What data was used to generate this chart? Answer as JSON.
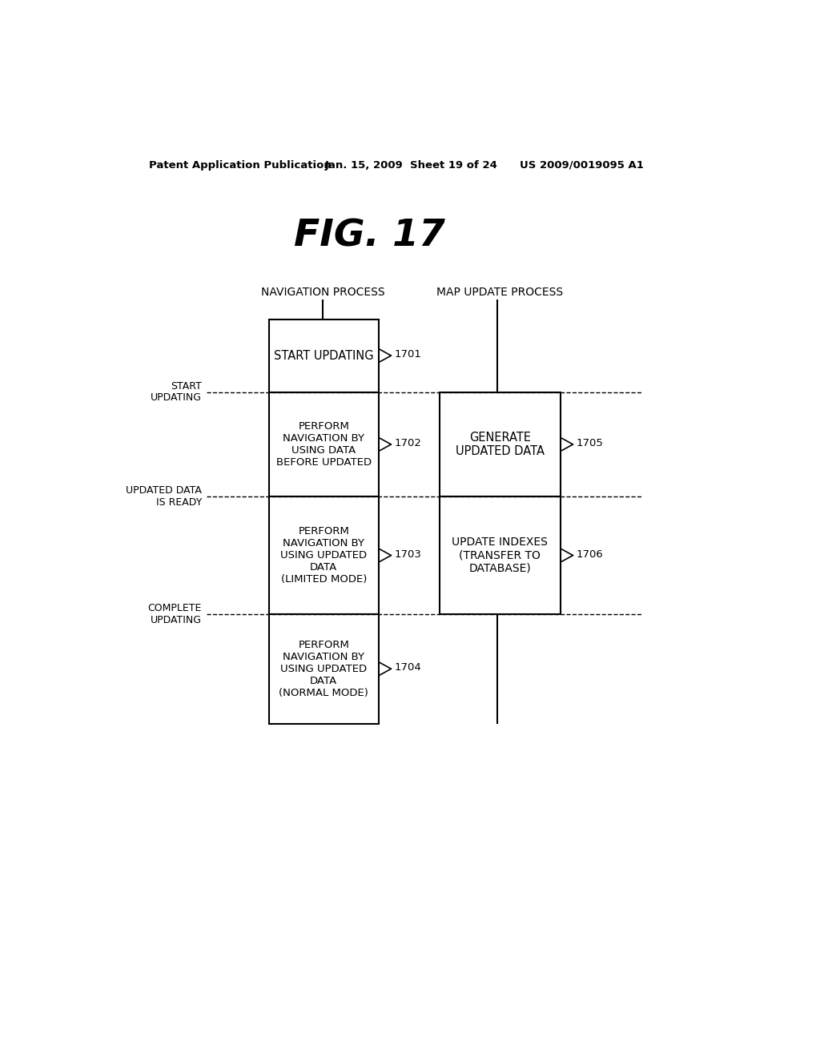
{
  "title": "FIG. 17",
  "header_left": "Patent Application Publication",
  "header_mid": "Jan. 15, 2009  Sheet 19 of 24",
  "header_right": "US 2009/0019095 A1",
  "col1_label": "NAVIGATION PROCESS",
  "col2_label": "MAP UPDATE PROCESS",
  "row_label_1": "START\nUPDATING",
  "row_label_2": "UPDATED DATA\nIS READY",
  "row_label_3": "COMPLETE\nUPDATING",
  "box_1701": "START UPDATING",
  "box_1702": "PERFORM\nNAVIGATION BY\nUSING DATA\nBEFORE UPDATED",
  "box_1703": "PERFORM\nNAVIGATION BY\nUSING UPDATED\nDATA\n(LIMITED MODE)",
  "box_1704": "PERFORM\nNAVIGATION BY\nUSING UPDATED\nDATA\n(NORMAL MODE)",
  "box_1705": "GENERATE\nUPDATED DATA",
  "box_1706": "UPDATE INDEXES\n(TRANSFER TO\nDATABASE)",
  "ref_1701": "1701",
  "ref_1702": "1702",
  "ref_1703": "1703",
  "ref_1704": "1704",
  "ref_1705": "1705",
  "ref_1706": "1706",
  "bg_color": "#ffffff",
  "box_color": "#ffffff",
  "box_edge_color": "#000000",
  "text_color": "#000000"
}
